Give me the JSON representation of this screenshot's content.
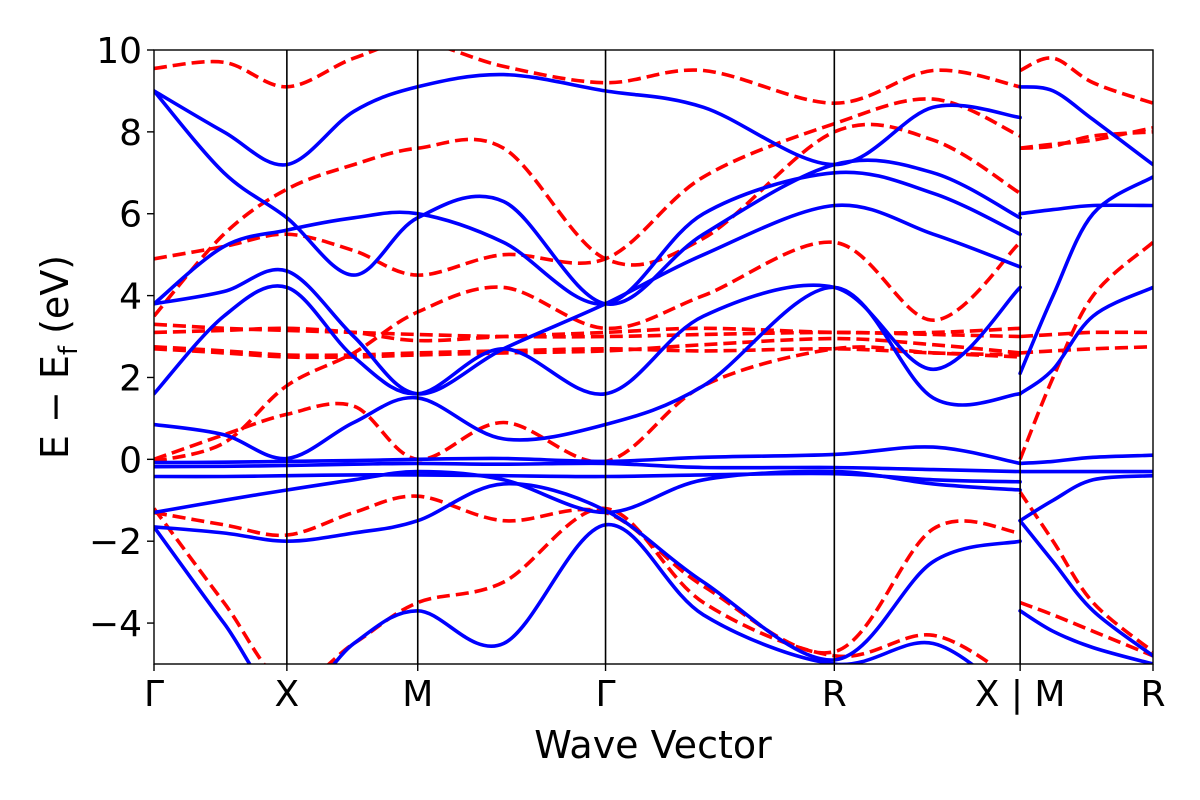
{
  "chart_data": {
    "type": "line",
    "title": "",
    "xlabel": "Wave Vector",
    "ylabel": "E − E",
    "ylabel_sub": "f",
    "ylabel_unit": " (eV)",
    "ylim": [
      -5,
      10
    ],
    "xlim": [
      0,
      1
    ],
    "grid": false,
    "legend": "none",
    "y_ticks": [
      {
        "value": -4,
        "label": "−4"
      },
      {
        "value": -2,
        "label": "−2"
      },
      {
        "value": 0,
        "label": "0"
      },
      {
        "value": 2,
        "label": "2"
      },
      {
        "value": 4,
        "label": "4"
      },
      {
        "value": 6,
        "label": "6"
      },
      {
        "value": 8,
        "label": "8"
      },
      {
        "value": 10,
        "label": "10"
      }
    ],
    "x_ticks": [
      {
        "value": 0.0,
        "label": "Γ"
      },
      {
        "value": 0.133,
        "label": "X"
      },
      {
        "value": 0.264,
        "label": "M"
      },
      {
        "value": 0.452,
        "label": "Γ"
      },
      {
        "value": 0.681,
        "label": "R"
      },
      {
        "value": 0.867,
        "label": "X | M"
      },
      {
        "value": 1.0,
        "label": "R"
      }
    ],
    "vlines": [
      0.133,
      0.264,
      0.452,
      0.681,
      0.867
    ],
    "colors": {
      "solid": "#0000ff",
      "dashed": "#ff0000"
    },
    "series": [
      {
        "style": "solid",
        "x": [
          0,
          0.07,
          0.133,
          0.2,
          0.264,
          0.35,
          0.452,
          0.55,
          0.681,
          0.78,
          0.867
        ],
        "y": [
          -0.08,
          -0.07,
          -0.05,
          -0.03,
          0.0,
          0.02,
          -0.05,
          0.05,
          0.12,
          0.3,
          -0.1
        ]
      },
      {
        "style": "solid",
        "x": [
          0,
          0.07,
          0.133,
          0.2,
          0.264,
          0.35,
          0.452,
          0.55,
          0.681,
          0.78,
          0.867
        ],
        "y": [
          -0.18,
          -0.17,
          -0.15,
          -0.12,
          -0.1,
          -0.12,
          -0.1,
          -0.2,
          -0.2,
          -0.25,
          -0.3
        ]
      },
      {
        "style": "solid",
        "x": [
          0,
          0.07,
          0.133,
          0.2,
          0.264,
          0.35,
          0.452,
          0.55,
          0.681,
          0.78,
          0.867
        ],
        "y": [
          -0.42,
          -0.42,
          -0.4,
          -0.38,
          -0.38,
          -0.4,
          -0.42,
          -0.38,
          -0.35,
          -0.5,
          -0.55
        ]
      },
      {
        "style": "solid",
        "x": [
          0,
          0.07,
          0.133,
          0.2,
          0.264,
          0.35,
          0.452,
          0.55,
          0.681,
          0.78,
          0.867
        ],
        "y": [
          -1.3,
          -1.0,
          -0.75,
          -0.5,
          -0.3,
          -0.5,
          -1.3,
          -0.5,
          -0.3,
          -0.6,
          -0.75
        ]
      },
      {
        "style": "solid",
        "x": [
          0,
          0.07,
          0.133,
          0.2,
          0.264,
          0.35,
          0.452,
          0.55,
          0.681,
          0.78,
          0.867
        ],
        "y": [
          -1.65,
          -1.8,
          -2.0,
          -1.8,
          -1.5,
          -0.6,
          -1.25,
          -3.0,
          -4.9,
          -2.5,
          -2.0
        ]
      },
      {
        "style": "solid",
        "x": [
          0,
          0.07,
          0.133,
          0.2,
          0.264,
          0.35,
          0.452,
          0.55,
          0.681,
          0.78,
          0.867
        ],
        "y": [
          -1.65,
          -4.0,
          -6.0,
          -4.5,
          -3.7,
          -4.5,
          -1.6,
          -3.8,
          -5.0,
          -4.5,
          -6.0
        ]
      },
      {
        "style": "solid",
        "x": [
          0,
          0.07,
          0.133,
          0.2,
          0.264,
          0.35,
          0.452,
          0.55,
          0.681,
          0.78,
          0.867
        ],
        "y": [
          0.85,
          0.6,
          0.02,
          0.9,
          1.5,
          0.5,
          0.85,
          1.8,
          4.2,
          1.5,
          1.6
        ]
      },
      {
        "style": "solid",
        "x": [
          0,
          0.07,
          0.133,
          0.2,
          0.264,
          0.35,
          0.452,
          0.55,
          0.681,
          0.78,
          0.867
        ],
        "y": [
          1.6,
          3.5,
          4.2,
          2.5,
          1.6,
          2.7,
          1.6,
          3.5,
          4.2,
          2.2,
          4.2
        ]
      },
      {
        "style": "solid",
        "x": [
          0,
          0.07,
          0.133,
          0.2,
          0.264,
          0.35,
          0.452,
          0.55,
          0.681,
          0.78,
          0.867
        ],
        "y": [
          3.8,
          4.1,
          4.6,
          3.0,
          1.6,
          2.7,
          3.8,
          5.0,
          6.2,
          5.5,
          4.7
        ]
      },
      {
        "style": "solid",
        "x": [
          0,
          0.07,
          0.133,
          0.2,
          0.264,
          0.35,
          0.452,
          0.55,
          0.681,
          0.78,
          0.867
        ],
        "y": [
          3.8,
          5.2,
          5.6,
          5.9,
          6.0,
          5.3,
          3.8,
          6.0,
          7.0,
          6.5,
          5.5
        ]
      },
      {
        "style": "solid",
        "x": [
          0,
          0.07,
          0.133,
          0.2,
          0.264,
          0.35,
          0.452,
          0.55,
          0.681,
          0.78,
          0.867
        ],
        "y": [
          9.0,
          7.0,
          5.9,
          4.5,
          5.9,
          6.3,
          3.8,
          5.5,
          7.2,
          7.0,
          5.9
        ]
      },
      {
        "style": "solid",
        "x": [
          0,
          0.07,
          0.133,
          0.2,
          0.264,
          0.35,
          0.452,
          0.55,
          0.681,
          0.78,
          0.867
        ],
        "y": [
          9.0,
          8.0,
          7.2,
          8.5,
          9.1,
          9.4,
          9.0,
          8.6,
          7.2,
          8.6,
          8.35
        ]
      },
      {
        "style": "solid",
        "x": [
          0.867,
          0.9,
          0.94,
          1.0
        ],
        "y": [
          -0.1,
          -0.05,
          0.05,
          0.1
        ]
      },
      {
        "style": "solid",
        "x": [
          0.867,
          0.9,
          0.94,
          1.0
        ],
        "y": [
          -0.3,
          -0.3,
          -0.3,
          -0.3
        ]
      },
      {
        "style": "solid",
        "x": [
          0.867,
          0.9,
          0.94,
          1.0
        ],
        "y": [
          -1.5,
          -1.0,
          -0.5,
          -0.4
        ]
      },
      {
        "style": "solid",
        "x": [
          0.867,
          0.9,
          0.94,
          1.0
        ],
        "y": [
          -1.5,
          -2.5,
          -3.7,
          -4.8
        ]
      },
      {
        "style": "solid",
        "x": [
          0.867,
          0.9,
          0.94,
          1.0
        ],
        "y": [
          -3.7,
          -4.2,
          -4.6,
          -5.0
        ]
      },
      {
        "style": "solid",
        "x": [
          0.867,
          0.9,
          0.94,
          1.0
        ],
        "y": [
          1.6,
          2.2,
          3.5,
          4.2
        ]
      },
      {
        "style": "solid",
        "x": [
          0.867,
          0.9,
          0.94,
          1.0
        ],
        "y": [
          6.0,
          6.1,
          6.2,
          6.2
        ]
      },
      {
        "style": "solid",
        "x": [
          0.867,
          0.9,
          0.94,
          1.0
        ],
        "y": [
          2.1,
          4.0,
          6.0,
          6.9
        ]
      },
      {
        "style": "solid",
        "x": [
          0.867,
          0.9,
          0.94,
          1.0
        ],
        "y": [
          9.1,
          9.0,
          8.3,
          7.2
        ]
      },
      {
        "style": "dashed",
        "x": [
          0,
          0.07,
          0.133,
          0.2,
          0.264,
          0.35,
          0.452,
          0.55,
          0.681,
          0.78,
          0.867
        ],
        "y": [
          2.75,
          2.65,
          2.55,
          2.55,
          2.6,
          2.65,
          2.7,
          2.65,
          2.7,
          2.6,
          2.55
        ]
      },
      {
        "style": "dashed",
        "x": [
          0,
          0.07,
          0.133,
          0.2,
          0.264,
          0.35,
          0.452,
          0.55,
          0.681,
          0.78,
          0.867
        ],
        "y": [
          2.7,
          2.6,
          2.5,
          2.5,
          2.55,
          2.6,
          2.65,
          2.8,
          2.95,
          2.8,
          2.6
        ]
      },
      {
        "style": "dashed",
        "x": [
          0,
          0.07,
          0.133,
          0.2,
          0.264,
          0.35,
          0.452,
          0.55,
          0.681,
          0.78,
          0.867
        ],
        "y": [
          3.3,
          3.2,
          3.15,
          3.1,
          3.05,
          3.0,
          3.0,
          3.05,
          3.1,
          3.05,
          3.0
        ]
      },
      {
        "style": "dashed",
        "x": [
          0,
          0.07,
          0.133,
          0.2,
          0.264,
          0.35,
          0.452,
          0.55,
          0.681,
          0.78,
          0.867
        ],
        "y": [
          3.1,
          3.15,
          3.2,
          3.1,
          2.9,
          3.0,
          3.1,
          3.2,
          3.1,
          3.1,
          3.2
        ]
      },
      {
        "style": "dashed",
        "x": [
          0,
          0.07,
          0.133,
          0.2,
          0.264,
          0.35,
          0.452,
          0.55,
          0.681,
          0.78,
          0.867
        ],
        "y": [
          0.0,
          0.6,
          1.1,
          1.3,
          0.0,
          0.9,
          -0.05,
          1.8,
          2.7,
          2.6,
          2.5
        ]
      },
      {
        "style": "dashed",
        "x": [
          0,
          0.07,
          0.133,
          0.2,
          0.264,
          0.35,
          0.452,
          0.55,
          0.681,
          0.78,
          0.867
        ],
        "y": [
          -0.05,
          0.4,
          1.8,
          2.6,
          3.6,
          4.2,
          3.2,
          4.0,
          5.3,
          3.4,
          5.3
        ]
      },
      {
        "style": "dashed",
        "x": [
          0,
          0.07,
          0.133,
          0.2,
          0.264,
          0.35,
          0.452,
          0.55,
          0.681,
          0.78,
          0.867
        ],
        "y": [
          3.5,
          5.5,
          6.6,
          7.2,
          7.6,
          7.6,
          4.9,
          5.4,
          8.0,
          7.8,
          6.5
        ]
      },
      {
        "style": "dashed",
        "x": [
          0,
          0.07,
          0.133,
          0.2,
          0.264,
          0.35,
          0.452,
          0.55,
          0.681,
          0.78,
          0.867
        ],
        "y": [
          4.9,
          5.2,
          5.5,
          5.1,
          4.5,
          5.0,
          4.9,
          6.9,
          8.2,
          8.8,
          7.9
        ]
      },
      {
        "style": "dashed",
        "x": [
          0,
          0.07,
          0.133,
          0.2,
          0.264,
          0.35,
          0.452,
          0.55,
          0.681,
          0.78,
          0.867
        ],
        "y": [
          9.55,
          9.7,
          9.1,
          9.8,
          10.2,
          9.6,
          9.2,
          9.5,
          8.7,
          9.5,
          9.1
        ]
      },
      {
        "style": "dashed",
        "x": [
          0,
          0.07,
          0.133,
          0.2,
          0.264,
          0.35,
          0.452,
          0.55,
          0.681,
          0.78,
          0.867
        ],
        "y": [
          -1.3,
          -1.6,
          -1.85,
          -1.3,
          -0.9,
          -1.5,
          -1.3,
          -3.1,
          -4.7,
          -1.7,
          -1.8
        ]
      },
      {
        "style": "dashed",
        "x": [
          0,
          0.07,
          0.133,
          0.2,
          0.264,
          0.35,
          0.452,
          0.55,
          0.681,
          0.78,
          0.867
        ],
        "y": [
          -1.2,
          -3.5,
          -5.5,
          -4.5,
          -3.5,
          -3.0,
          -1.2,
          -3.5,
          -4.8,
          -4.3,
          -5.5
        ]
      },
      {
        "style": "dashed",
        "x": [
          0.867,
          0.9,
          0.94,
          1.0
        ],
        "y": [
          3.0,
          3.05,
          3.1,
          3.1
        ]
      },
      {
        "style": "dashed",
        "x": [
          0.867,
          0.9,
          0.94,
          1.0
        ],
        "y": [
          2.6,
          2.65,
          2.7,
          2.75
        ]
      },
      {
        "style": "dashed",
        "x": [
          0.867,
          0.9,
          0.94,
          1.0
        ],
        "y": [
          7.6,
          7.7,
          7.8,
          8.1
        ]
      },
      {
        "style": "dashed",
        "x": [
          0.867,
          0.9,
          0.94,
          1.0
        ],
        "y": [
          7.6,
          7.65,
          7.9,
          8.0
        ]
      },
      {
        "style": "dashed",
        "x": [
          0.867,
          0.9,
          0.94,
          1.0
        ],
        "y": [
          0.0,
          2.0,
          4.0,
          5.3
        ]
      },
      {
        "style": "dashed",
        "x": [
          0.867,
          0.9,
          0.94,
          1.0
        ],
        "y": [
          -0.8,
          -2.0,
          -3.5,
          -4.7
        ]
      },
      {
        "style": "dashed",
        "x": [
          0.867,
          0.9,
          0.94,
          1.0
        ],
        "y": [
          -3.5,
          -3.8,
          -4.2,
          -4.8
        ]
      },
      {
        "style": "dashed",
        "x": [
          0.867,
          0.9,
          0.94,
          1.0
        ],
        "y": [
          9.5,
          9.8,
          9.2,
          8.7
        ]
      }
    ]
  }
}
